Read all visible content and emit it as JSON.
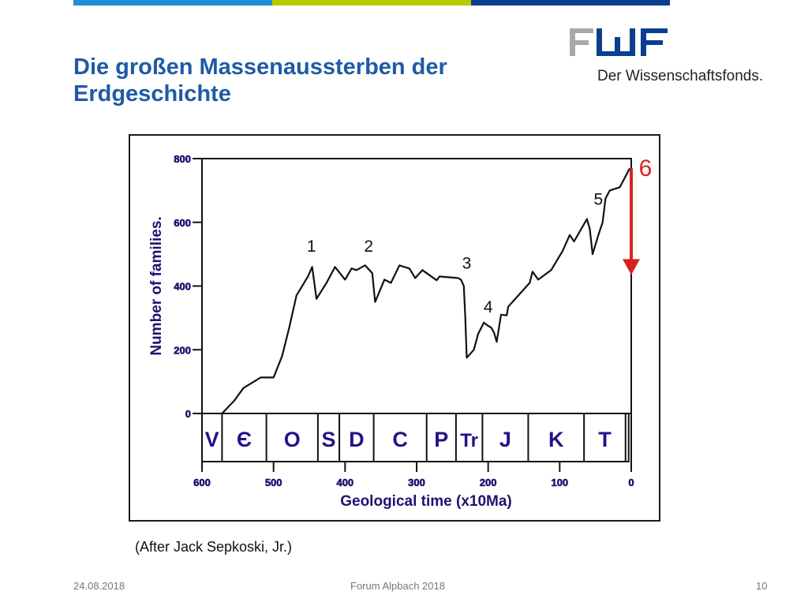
{
  "slide": {
    "title_line1": "Die großen Massenaussterben der",
    "title_line2": "Erdgeschichte",
    "caption": "(After Jack Sepkoski, Jr.)",
    "footer_date": "24.08.2018",
    "footer_event": "Forum Alpbach 2018",
    "page_number": "10",
    "top_bar_colors": [
      "#1e8fd0",
      "#b7c900",
      "#0a3f8f"
    ],
    "title_color": "#1f5aa6"
  },
  "logo": {
    "wordmark": "FWF",
    "tagline": "Der Wissenschaftsfonds.",
    "gray": "#a8a8a8",
    "blue": "#0a3f8f"
  },
  "chart_data": {
    "type": "line",
    "ylabel": "Number of families.",
    "xlabel": "Geological time (x10Ma)",
    "ylim": [
      0,
      800
    ],
    "xlim": [
      600,
      0
    ],
    "yticks": [
      0,
      200,
      400,
      600,
      800
    ],
    "xticks": [
      600,
      500,
      400,
      300,
      200,
      100,
      0
    ],
    "grid": false,
    "series": [
      {
        "points": [
          [
            572,
            0
          ],
          [
            555,
            40
          ],
          [
            542,
            80
          ],
          [
            518,
            113
          ],
          [
            500,
            113
          ],
          [
            488,
            180
          ],
          [
            478,
            270
          ],
          [
            468,
            370
          ],
          [
            452,
            430
          ],
          [
            446,
            460
          ],
          [
            440,
            360
          ],
          [
            426,
            410
          ],
          [
            414,
            460
          ],
          [
            400,
            420
          ],
          [
            391,
            455
          ],
          [
            384,
            450
          ],
          [
            372,
            465
          ],
          [
            362,
            440
          ],
          [
            358,
            350
          ],
          [
            345,
            420
          ],
          [
            336,
            410
          ],
          [
            324,
            465
          ],
          [
            310,
            455
          ],
          [
            302,
            425
          ],
          [
            292,
            450
          ],
          [
            272,
            418
          ],
          [
            268,
            430
          ],
          [
            242,
            425
          ],
          [
            238,
            420
          ],
          [
            234,
            400
          ],
          [
            232,
            300
          ],
          [
            230,
            175
          ],
          [
            220,
            200
          ],
          [
            214,
            250
          ],
          [
            206,
            285
          ],
          [
            200,
            275
          ],
          [
            196,
            270
          ],
          [
            192,
            255
          ],
          [
            188,
            225
          ],
          [
            182,
            310
          ],
          [
            174,
            308
          ],
          [
            172,
            335
          ],
          [
            160,
            365
          ],
          [
            142,
            410
          ],
          [
            138,
            445
          ],
          [
            130,
            420
          ],
          [
            112,
            450
          ],
          [
            96,
            510
          ],
          [
            86,
            560
          ],
          [
            80,
            540
          ],
          [
            62,
            610
          ],
          [
            58,
            580
          ],
          [
            54,
            500
          ],
          [
            46,
            560
          ],
          [
            40,
            600
          ],
          [
            36,
            675
          ],
          [
            30,
            700
          ],
          [
            16,
            710
          ],
          [
            2,
            770
          ]
        ],
        "color": "#111111"
      }
    ],
    "annotations": [
      {
        "text": "1",
        "x": 447,
        "y": 508
      },
      {
        "text": "2",
        "x": 367,
        "y": 508
      },
      {
        "text": "3",
        "x": 230,
        "y": 454
      },
      {
        "text": "4",
        "x": 200,
        "y": 317
      },
      {
        "text": "5",
        "x": 46,
        "y": 655
      }
    ],
    "extinction_arrow": {
      "label": "6",
      "from_y": 770,
      "to_y": 450,
      "at_x": 0,
      "color": "#d6231d"
    },
    "periods": [
      {
        "label": "V",
        "start": 600,
        "end": 572
      },
      {
        "label": "Є",
        "start": 572,
        "end": 510
      },
      {
        "label": "O",
        "start": 510,
        "end": 438
      },
      {
        "label": "S",
        "start": 438,
        "end": 408
      },
      {
        "label": "D",
        "start": 408,
        "end": 360
      },
      {
        "label": "C",
        "start": 360,
        "end": 286
      },
      {
        "label": "P",
        "start": 286,
        "end": 245
      },
      {
        "label": "Tr",
        "start": 245,
        "end": 208
      },
      {
        "label": "J",
        "start": 208,
        "end": 144
      },
      {
        "label": "K",
        "start": 144,
        "end": 66
      },
      {
        "label": "T",
        "start": 66,
        "end": 8
      }
    ],
    "label_color": "#1c1470",
    "period_label_color": "#21148a"
  }
}
